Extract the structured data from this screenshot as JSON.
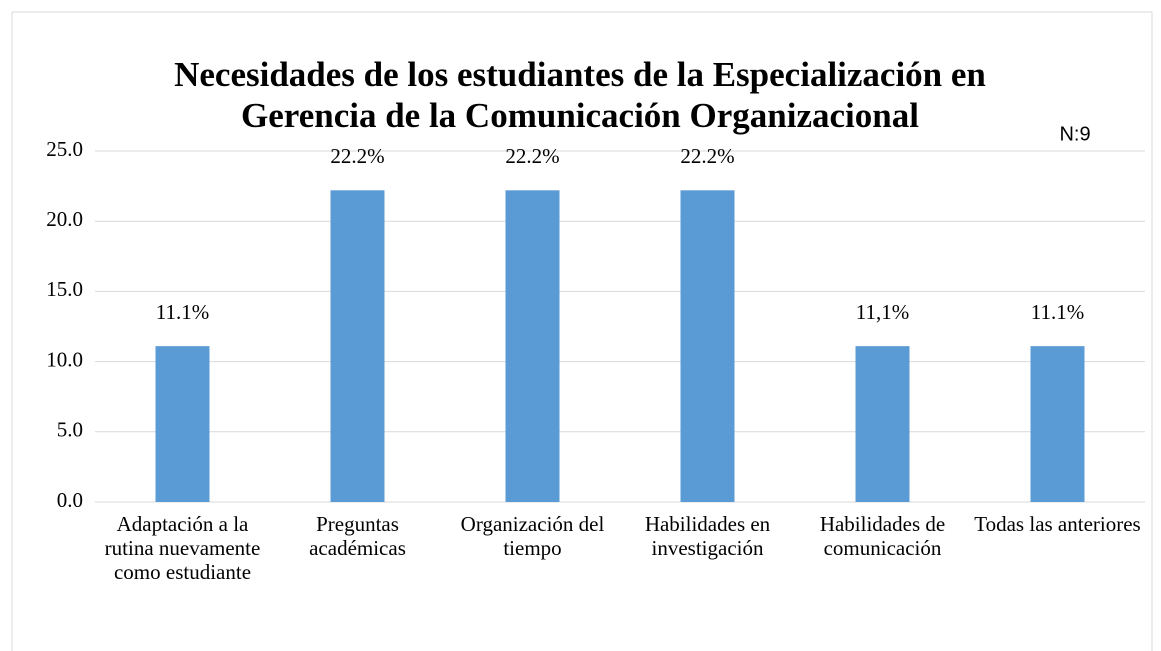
{
  "chart_data": {
    "type": "bar",
    "title": [
      "Necesidades de los estudiantes de la Especialización en",
      "Gerencia de la Comunicación Organizacional"
    ],
    "annotation": "N:9",
    "categories": [
      "Adaptación a la rutina nuevamente como estudiante",
      "Preguntas académicas",
      "Organización del tiempo",
      "Habilidades en investigación",
      "Habilidades de comunicación",
      "Todas las anteriores"
    ],
    "values": [
      11.1,
      22.2,
      22.2,
      22.2,
      11.1,
      11.1
    ],
    "value_labels": [
      "11.1%",
      "22.2%",
      "22.2%",
      "22.2%",
      "11,1%",
      "11.1%"
    ],
    "color": "#5b9bd5",
    "ylim": [
      0,
      25
    ],
    "yticks": [
      {
        "value": 0,
        "label": "0.0"
      },
      {
        "value": 5,
        "label": "5.0"
      },
      {
        "value": 10,
        "label": "10.0"
      },
      {
        "value": 15,
        "label": "15.0"
      },
      {
        "value": 20,
        "label": "20.0"
      },
      {
        "value": 25,
        "label": "25.0"
      }
    ],
    "grid": true
  }
}
